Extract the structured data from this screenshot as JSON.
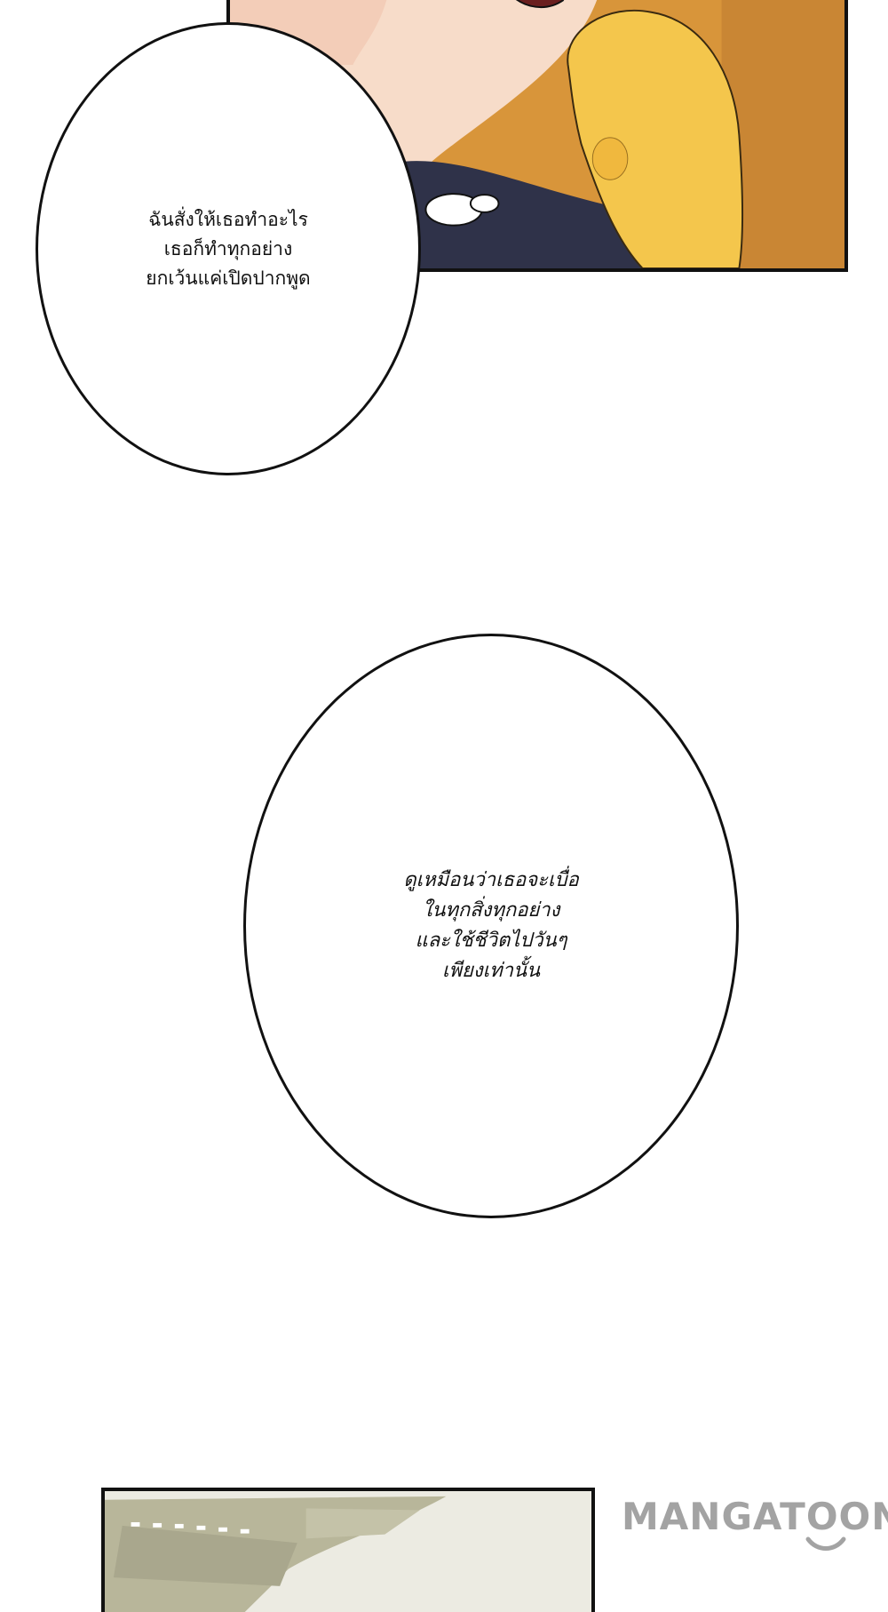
{
  "bubbles": [
    {
      "lines": [
        "ฉันสั่งให้เธอทำอะไร",
        "เธอก็ทำทุกอย่าง",
        "ยกเว้นแค่เปิดปากพูด"
      ]
    },
    {
      "lines": [
        "ดูเหมือนว่าเธอจะเบื่อ",
        "ในทุกสิ่งทุกอย่าง",
        "และใช้ชีวิตไปวันๆ",
        "เพียงเท่านั้น"
      ]
    }
  ],
  "watermark": {
    "text": "MANGATOON"
  },
  "colors": {
    "panel_background": "#d8953a",
    "sofa": "#f4c64c",
    "skin": "#f7dcc9",
    "shirt": "#2f3249",
    "watermark": "#a3a3a3"
  },
  "icons": {
    "watermark_smile": "smile-curve"
  }
}
